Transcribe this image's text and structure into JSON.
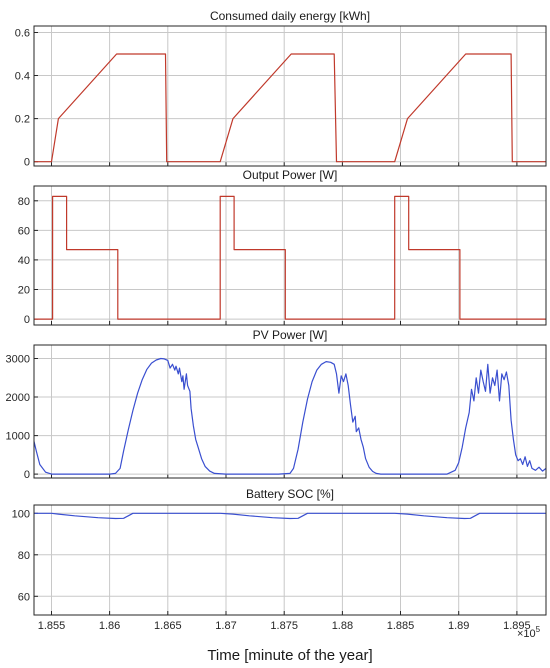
{
  "xlabel": "Time [minute of the year]",
  "x_exponent": {
    "base": "×10",
    "power": "5"
  },
  "colors": {
    "red_series": "#c0392b",
    "blue_series": "#3a4fd0",
    "grid": "#c8c8c8",
    "axes": "#262626"
  },
  "chart_data": [
    {
      "type": "line",
      "title": "Consumed daily energy [kWh]",
      "xlim": [
        1.8535,
        1.8975
      ],
      "ylim": [
        -0.02,
        0.63
      ],
      "xticks": [
        1.855,
        1.86,
        1.865,
        1.87,
        1.875,
        1.88,
        1.885,
        1.89,
        1.895
      ],
      "xtick_labels": [
        "1.855",
        "1.86",
        "1.865",
        "1.87",
        "1.875",
        "1.88",
        "1.885",
        "1.89",
        "1.895"
      ],
      "yticks": [
        0,
        0.2,
        0.4,
        0.6
      ],
      "ytick_labels": [
        "0",
        "0.2",
        "0.4",
        "0.6"
      ],
      "grid": true,
      "series": [
        {
          "color": "red",
          "x": [
            1.8535,
            1.855,
            1.8556,
            1.8606,
            1.8648,
            1.8649,
            1.8695,
            1.8706,
            1.8756,
            1.8793,
            1.8795,
            1.8845,
            1.8856,
            1.8906,
            1.8945,
            1.8946,
            1.8975
          ],
          "y": [
            0,
            0,
            0.2,
            0.5,
            0.5,
            0,
            0,
            0.2,
            0.5,
            0.5,
            0,
            0,
            0.2,
            0.5,
            0.5,
            0,
            0
          ]
        }
      ]
    },
    {
      "type": "line",
      "title": "Output Power [W]",
      "xlim": [
        1.8535,
        1.8975
      ],
      "ylim": [
        -4,
        90
      ],
      "xticks": [
        1.855,
        1.86,
        1.865,
        1.87,
        1.875,
        1.88,
        1.885,
        1.89,
        1.895
      ],
      "xtick_labels": [
        "1.855",
        "1.86",
        "1.865",
        "1.87",
        "1.875",
        "1.88",
        "1.885",
        "1.89",
        "1.895"
      ],
      "yticks": [
        0,
        20,
        40,
        60,
        80
      ],
      "ytick_labels": [
        "0",
        "20",
        "40",
        "60",
        "80"
      ],
      "grid": true,
      "series": [
        {
          "color": "red",
          "x": [
            1.8535,
            1.8551,
            1.8551,
            1.8563,
            1.8563,
            1.8607,
            1.8607,
            1.8695,
            1.8695,
            1.8707,
            1.8707,
            1.8751,
            1.8751,
            1.8845,
            1.8845,
            1.8857,
            1.8857,
            1.8901,
            1.8901,
            1.8975
          ],
          "y": [
            0,
            0,
            83,
            83,
            47,
            47,
            0,
            0,
            83,
            83,
            47,
            47,
            0,
            0,
            83,
            83,
            47,
            47,
            0,
            0
          ]
        }
      ]
    },
    {
      "type": "line",
      "title": "PV Power [W]",
      "xlim": [
        1.8535,
        1.8975
      ],
      "ylim": [
        -100,
        3350
      ],
      "xticks": [
        1.855,
        1.86,
        1.865,
        1.87,
        1.875,
        1.88,
        1.885,
        1.89,
        1.895
      ],
      "xtick_labels": [
        "1.855",
        "1.86",
        "1.865",
        "1.87",
        "1.875",
        "1.88",
        "1.885",
        "1.89",
        "1.895"
      ],
      "yticks": [
        0,
        1000,
        2000,
        3000
      ],
      "ytick_labels": [
        "0",
        "1000",
        "2000",
        "3000"
      ],
      "grid": true,
      "series": [
        {
          "color": "blue",
          "x": [
            1.8535,
            1.8537,
            1.854,
            1.8545,
            1.855,
            1.856,
            1.857,
            1.858,
            1.859,
            1.86,
            1.8605,
            1.8609,
            1.8612,
            1.8616,
            1.862,
            1.8624,
            1.8628,
            1.8632,
            1.8636,
            1.864,
            1.8644,
            1.8647,
            1.865,
            1.8652,
            1.8654,
            1.8656,
            1.8657,
            1.8659,
            1.866,
            1.8662,
            1.8663,
            1.8664,
            1.8666,
            1.8667,
            1.8669,
            1.867,
            1.8672,
            1.8674,
            1.8676,
            1.8679,
            1.8682,
            1.8686,
            1.869,
            1.87,
            1.871,
            1.872,
            1.873,
            1.8745,
            1.8755,
            1.8758,
            1.8762,
            1.8766,
            1.877,
            1.8774,
            1.8778,
            1.8782,
            1.8786,
            1.879,
            1.8793,
            1.8795,
            1.8797,
            1.8799,
            1.8801,
            1.8803,
            1.8805,
            1.8807,
            1.8809,
            1.8811,
            1.8812,
            1.8814,
            1.8816,
            1.8818,
            1.882,
            1.8823,
            1.8826,
            1.8829,
            1.8833,
            1.884,
            1.885,
            1.886,
            1.887,
            1.888,
            1.889,
            1.8897,
            1.89,
            1.8903,
            1.8906,
            1.8909,
            1.8911,
            1.8913,
            1.8915,
            1.8917,
            1.8919,
            1.8921,
            1.8923,
            1.8925,
            1.8927,
            1.8929,
            1.8931,
            1.8933,
            1.8935,
            1.8937,
            1.8939,
            1.8941,
            1.8943,
            1.8945,
            1.8947,
            1.8949,
            1.8951,
            1.8953,
            1.8955,
            1.8957,
            1.8959,
            1.8961,
            1.8963,
            1.8966,
            1.8969,
            1.8972,
            1.8975
          ],
          "y": [
            850,
            600,
            250,
            50,
            0,
            0,
            0,
            0,
            0,
            0,
            20,
            150,
            600,
            1150,
            1650,
            2100,
            2450,
            2720,
            2880,
            2960,
            3000,
            2990,
            2950,
            2750,
            2850,
            2700,
            2800,
            2600,
            2750,
            2400,
            2550,
            2200,
            2600,
            2300,
            2150,
            1700,
            1250,
            900,
            700,
            400,
            200,
            80,
            20,
            0,
            0,
            0,
            0,
            0,
            20,
            150,
            650,
            1350,
            1950,
            2400,
            2700,
            2850,
            2920,
            2900,
            2850,
            2600,
            2100,
            2550,
            2400,
            2600,
            2300,
            1800,
            1350,
            1500,
            1100,
            1200,
            900,
            700,
            400,
            180,
            70,
            20,
            0,
            0,
            0,
            0,
            0,
            0,
            0,
            100,
            300,
            700,
            1200,
            1600,
            2200,
            1900,
            2500,
            2100,
            2700,
            2400,
            2150,
            2850,
            2100,
            2500,
            2300,
            2700,
            1900,
            2600,
            2450,
            2650,
            2300,
            1400,
            900,
            500,
            350,
            400,
            250,
            450,
            200,
            350,
            150,
            100,
            180,
            80,
            150
          ]
        }
      ]
    },
    {
      "type": "line",
      "title": "Battery SOC [%]",
      "xlim": [
        1.8535,
        1.8975
      ],
      "ylim": [
        51,
        104
      ],
      "xticks": [
        1.855,
        1.86,
        1.865,
        1.87,
        1.875,
        1.88,
        1.885,
        1.89,
        1.895
      ],
      "xtick_labels": [
        "1.855",
        "1.86",
        "1.865",
        "1.87",
        "1.875",
        "1.88",
        "1.885",
        "1.89",
        "1.895"
      ],
      "yticks": [
        60,
        80,
        100
      ],
      "ytick_labels": [
        "60",
        "80",
        "100"
      ],
      "grid": true,
      "series": [
        {
          "color": "blue",
          "x": [
            1.8535,
            1.855,
            1.8556,
            1.857,
            1.859,
            1.8605,
            1.8612,
            1.8616,
            1.862,
            1.8695,
            1.8706,
            1.872,
            1.874,
            1.8755,
            1.8762,
            1.8766,
            1.877,
            1.8845,
            1.8856,
            1.887,
            1.889,
            1.8905,
            1.891,
            1.8914,
            1.8918,
            1.8975
          ],
          "y": [
            100,
            100,
            99.6,
            98.8,
            97.9,
            97.5,
            97.6,
            98.8,
            100,
            100,
            99.6,
            98.8,
            97.9,
            97.5,
            97.6,
            98.8,
            100,
            100,
            99.6,
            98.8,
            97.9,
            97.5,
            97.6,
            98.8,
            100,
            100
          ]
        }
      ]
    }
  ]
}
